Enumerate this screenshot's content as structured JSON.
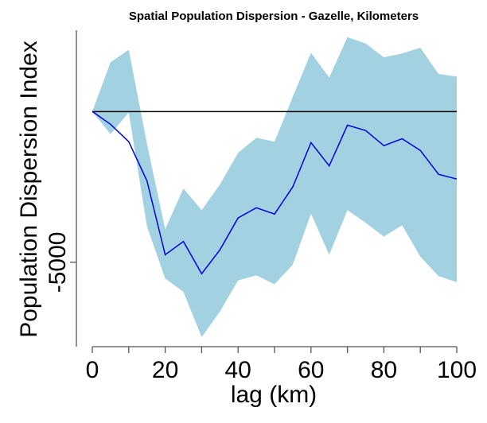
{
  "chart_data": {
    "type": "line",
    "title": "Spatial Population Dispersion - Gazelle, Kilometers",
    "xlabel": "lag (km)",
    "ylabel": "Population Dispersion Index",
    "x": [
      0,
      5,
      10,
      15,
      20,
      25,
      30,
      35,
      40,
      45,
      50,
      55,
      60,
      65,
      70,
      75,
      80,
      85,
      90,
      95,
      100
    ],
    "series": [
      {
        "values": [
          0,
          -420,
          -1000,
          -2300,
          -4750,
          -4310,
          -5380,
          -4590,
          -3530,
          -3190,
          -3400,
          -2500,
          -1030,
          -1800,
          -450,
          -630,
          -1130,
          -900,
          -1290,
          -2080,
          -2240
        ],
        "upper": [
          0,
          1640,
          2050,
          -1070,
          -3900,
          -2550,
          -3270,
          -2420,
          -1370,
          -870,
          -1000,
          490,
          1950,
          1130,
          2470,
          2260,
          1800,
          1930,
          2120,
          1250,
          1160
        ],
        "lower": [
          0,
          -750,
          -30,
          -3810,
          -5540,
          -5980,
          -7480,
          -6640,
          -5600,
          -5430,
          -5730,
          -5080,
          -3390,
          -4750,
          -3270,
          -3690,
          -4150,
          -3770,
          -4810,
          -5460,
          -5660
        ]
      }
    ],
    "reference_line": 0,
    "xlim": [
      0,
      100
    ],
    "ylim": [
      -7800,
      2700
    ],
    "xticks": [
      0,
      20,
      40,
      60,
      80,
      100
    ],
    "xtick_minor": [
      10,
      30,
      50,
      70,
      90
    ],
    "xtick_labels": [
      "0",
      "20",
      "40",
      "60",
      "80",
      "100"
    ],
    "yticks": [
      -5000
    ],
    "ytick_labels": [
      "-5000"
    ],
    "colors": {
      "band": "#a2d2e2",
      "line": "#0000e0",
      "reference": "#000000",
      "axis": "#555555"
    },
    "grid": false
  }
}
